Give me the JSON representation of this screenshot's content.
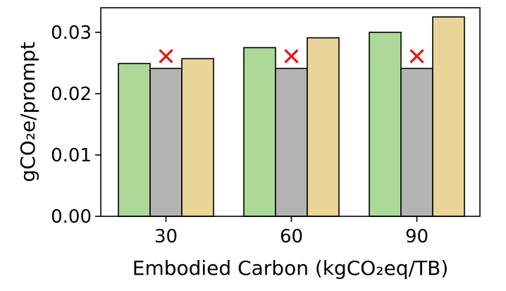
{
  "chart_data": {
    "type": "bar",
    "title": "",
    "xlabel": "Embodied Carbon (kgCO₂eq/TB)",
    "ylabel": "gCO₂e/prompt",
    "categories": [
      "30",
      "60",
      "90"
    ],
    "ylim": [
      0,
      0.034
    ],
    "yticks": [
      "0.00",
      "0.01",
      "0.02",
      "0.03"
    ],
    "ytick_values": [
      0.0,
      0.01,
      0.02,
      0.03
    ],
    "grid": false,
    "legend": "none",
    "series": [
      {
        "color": "#acd898",
        "values": [
          0.0249,
          0.0275,
          0.03
        ]
      },
      {
        "color": "#b3b3b3",
        "values": [
          0.0241,
          0.0241,
          0.0241
        ],
        "marker": "×",
        "marker_color": "#ee1111",
        "marker_values": [
          0.0261,
          0.0261,
          0.0261
        ]
      },
      {
        "color": "#ead597",
        "values": [
          0.0257,
          0.0291,
          0.0325
        ]
      }
    ]
  }
}
